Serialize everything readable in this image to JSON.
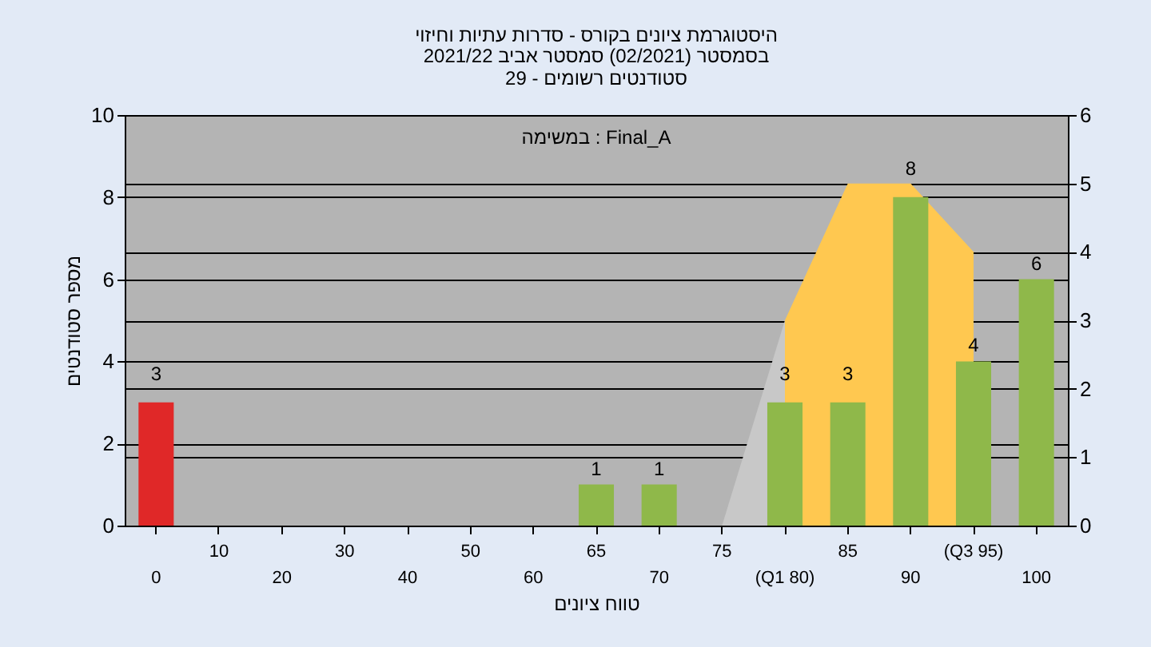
{
  "chart_data": {
    "type": "bar",
    "title": "היסטוגרמת ציונים בקורס - סדרות עתיות וחיזוי",
    "subtitle": "בסמסטר  (02/2021)  סמסטר אביב 2021/22\nסטודנטים רשומים - 29",
    "xlabel": "טווח ציונים",
    "ylabel": "מספר סטודנטים",
    "annotations": [
      "במשימה : Final_A"
    ],
    "categories": [
      "0",
      "10",
      "20",
      "30",
      "40",
      "50",
      "60",
      "65",
      "70",
      "75",
      "(Q1 80)",
      "85",
      "90",
      "(Q3 95)",
      "100"
    ],
    "series": [
      {
        "type": "area",
        "axis": "y2",
        "color": "#c8c8c8",
        "values": [
          null,
          null,
          null,
          null,
          null,
          null,
          null,
          null,
          null,
          0,
          3,
          null,
          null,
          null,
          null
        ]
      },
      {
        "type": "area",
        "axis": "y2",
        "color": "#ffc850",
        "values": [
          null,
          null,
          null,
          null,
          null,
          null,
          null,
          null,
          null,
          null,
          3,
          5,
          5,
          4,
          null
        ]
      },
      {
        "colors": [
          "#e02828",
          "#8fb84a",
          "#8fb84a",
          "#8fb84a",
          "#8fb84a",
          "#8fb84a",
          "#8fb84a",
          "#8fb84a",
          "#8fb84a",
          "#8fb84a",
          "#8fb84a",
          "#8fb84a",
          "#8fb84a",
          "#8fb84a",
          "#8fb84a"
        ],
        "values": [
          3,
          null,
          null,
          null,
          null,
          null,
          null,
          1,
          1,
          null,
          3,
          3,
          8,
          4,
          6
        ],
        "value_labels": [
          "3",
          null,
          null,
          null,
          null,
          null,
          null,
          "1",
          "1",
          null,
          "3",
          "3",
          "8",
          "4",
          "6"
        ]
      }
    ],
    "ylim": [
      0,
      10
    ],
    "yticks": [
      0,
      2,
      4,
      6,
      8,
      10
    ],
    "y2lim": [
      0,
      6
    ],
    "y2ticks": [
      0,
      1,
      2,
      3,
      4,
      5,
      6
    ],
    "grid": true
  }
}
